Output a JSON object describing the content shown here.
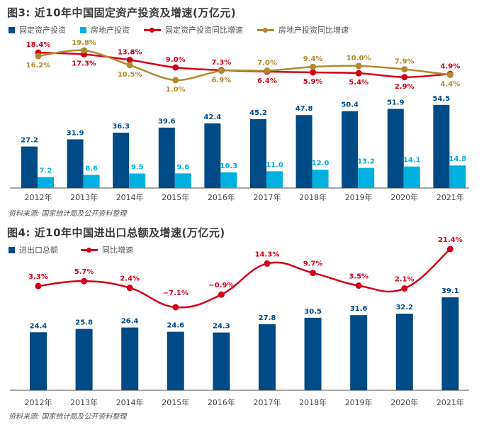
{
  "colors": {
    "dark_blue": "#004a85",
    "light_blue": "#00b0e0",
    "red": "#d4001a",
    "gold": "#b08a2e",
    "axis": "#888888",
    "text": "#444444"
  },
  "chart_data": [
    {
      "type": "bar",
      "title": "图3: 近10年中国固定资产投资及增速(万亿元)",
      "categories": [
        "2012年",
        "2013年",
        "2014年",
        "2015年",
        "2016年",
        "2017年",
        "2018年",
        "2019年",
        "2020年",
        "2021年"
      ],
      "series": [
        {
          "name": "固定资产投资",
          "type": "bar",
          "color": "#004a85",
          "values": [
            27.2,
            31.9,
            36.3,
            39.6,
            42.4,
            45.2,
            47.8,
            50.4,
            51.9,
            54.5
          ]
        },
        {
          "name": "房地产投资",
          "type": "bar",
          "color": "#00b0e0",
          "values": [
            7.2,
            8.6,
            9.5,
            9.6,
            10.3,
            11.0,
            12.0,
            13.2,
            14.1,
            14.8
          ]
        },
        {
          "name": "固定资产投资同比增速",
          "type": "line",
          "color": "#d4001a",
          "unit": "%",
          "values": [
            18.4,
            17.3,
            13.8,
            9.0,
            7.3,
            6.4,
            5.9,
            5.4,
            2.9,
            4.9
          ]
        },
        {
          "name": "房地产投资同比增速",
          "type": "line",
          "color": "#b08a2e",
          "unit": "%",
          "values": [
            16.2,
            19.8,
            10.5,
            1.0,
            6.9,
            7.0,
            9.4,
            10.0,
            7.9,
            4.4
          ]
        }
      ],
      "labels": {
        "red_line": [
          "18.4%",
          "17.3%",
          "13.8%",
          "9.0%",
          "7.3%",
          "6.4%",
          "5.9%",
          "5.4%",
          "2.9%",
          "4.9%"
        ],
        "gold_line": [
          "16.2%",
          "19.8%",
          "10.5%",
          "1.0%",
          "6.9%",
          "7.0%",
          "9.4%",
          "10.0%",
          "7.9%",
          "4.4%"
        ],
        "red_above": [
          true,
          false,
          true,
          true,
          true,
          false,
          false,
          false,
          false,
          true
        ],
        "gold_above": [
          false,
          true,
          false,
          false,
          false,
          true,
          true,
          true,
          true,
          false
        ]
      },
      "legend": "top-left",
      "xlabel": "",
      "ylabel": "",
      "grid": false,
      "source": "资料来源: 国家统计局及公开资料整理"
    },
    {
      "type": "bar",
      "title": "图4: 近10年中国进出口总额及增速(万亿元)",
      "categories": [
        "2012年",
        "2013年",
        "2014年",
        "2015年",
        "2016年",
        "2017年",
        "2018年",
        "2019年",
        "2020年",
        "2021年"
      ],
      "series": [
        {
          "name": "进出口总额",
          "type": "bar",
          "color": "#004a85",
          "values": [
            24.4,
            25.8,
            26.4,
            24.6,
            24.3,
            27.8,
            30.5,
            31.6,
            32.2,
            39.1
          ]
        },
        {
          "name": "同比增速",
          "type": "line",
          "color": "#d4001a",
          "unit": "%",
          "values": [
            3.3,
            5.7,
            2.4,
            -7.1,
            -0.9,
            14.3,
            9.7,
            3.5,
            2.1,
            21.4
          ]
        }
      ],
      "labels": {
        "line": [
          "3.3%",
          "5.7%",
          "2.4%",
          "−7.1%",
          "−0.9%",
          "14.3%",
          "9.7%",
          "3.5%",
          "2.1%",
          "21.4%"
        ]
      },
      "legend": "top-left",
      "xlabel": "",
      "ylabel": "",
      "grid": false,
      "source": "资料来源: 国家统计局及公开资料整理"
    }
  ]
}
